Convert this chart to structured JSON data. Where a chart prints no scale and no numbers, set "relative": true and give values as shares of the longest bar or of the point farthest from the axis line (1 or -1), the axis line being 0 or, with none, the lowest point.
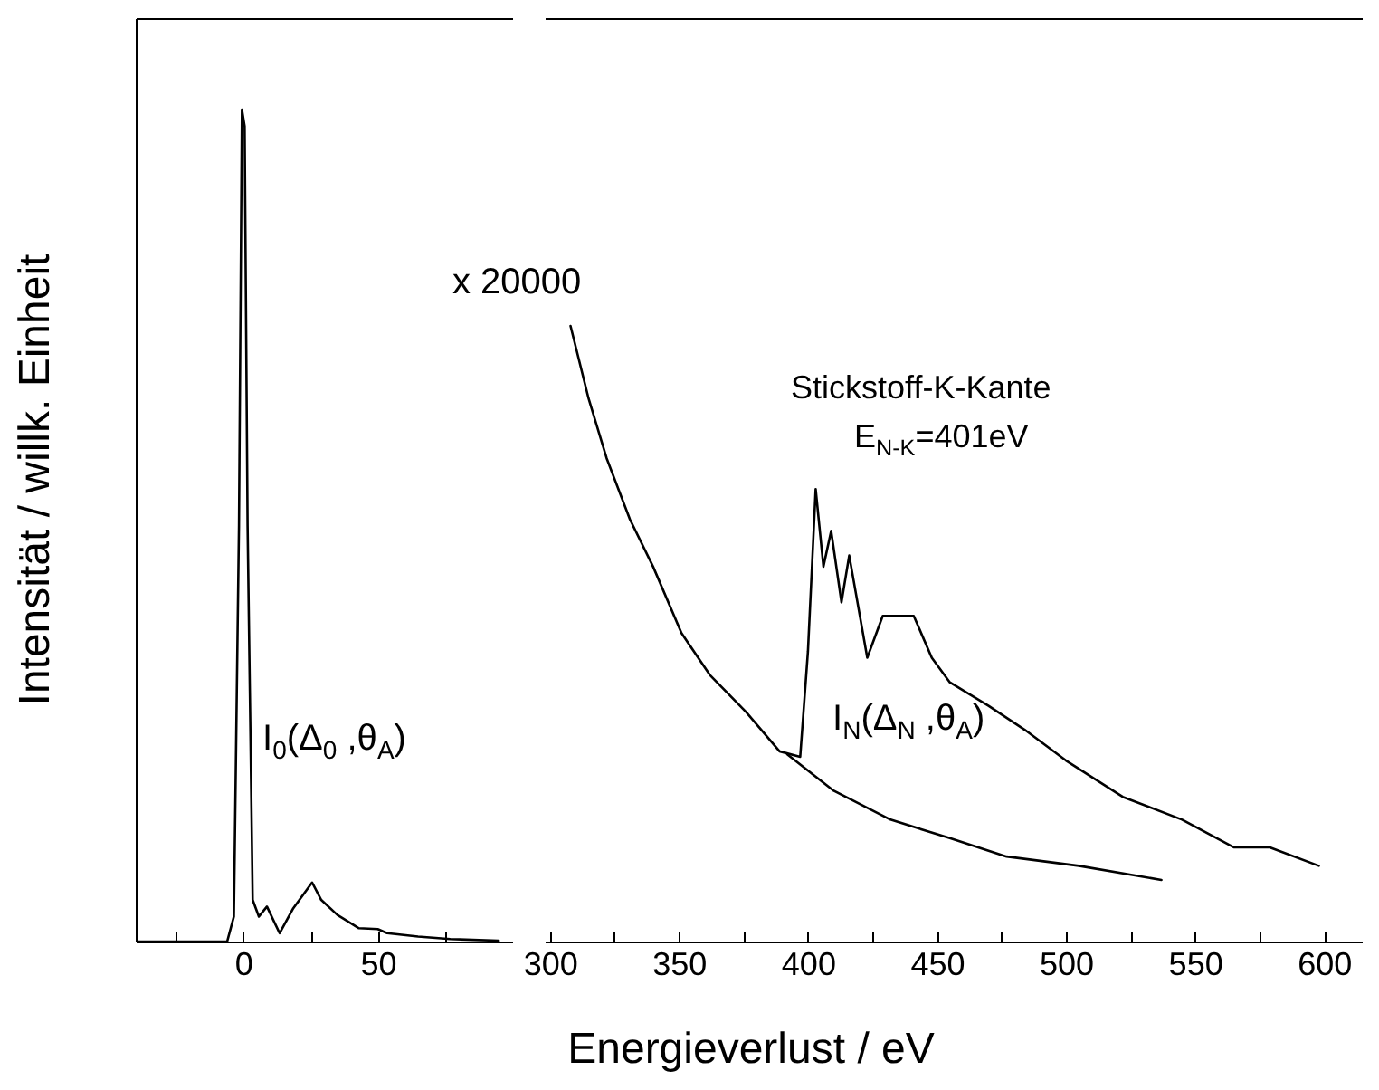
{
  "chart_data": [
    {
      "type": "line",
      "relative": true,
      "ylabel": "Intensität / willk. Einheit",
      "tick_labels": "x",
      "xlim": [
        -40,
        100
      ],
      "xticks": [
        {
          "value": -25,
          "label": null
        },
        0,
        {
          "value": 25,
          "label": null
        },
        50,
        {
          "value": 75,
          "label": null
        }
      ],
      "x": [
        -40,
        -6,
        -3.5,
        -1.6,
        -0.5,
        0.5,
        1.6,
        3.5,
        5.8,
        8.8,
        13.5,
        18.6,
        25.6,
        29,
        35,
        43,
        50,
        53.5,
        65,
        77,
        95
      ],
      "series": [
        {
          "color": "#000000",
          "values": [
            0,
            0,
            0.03,
            0.5,
            1.0,
            0.98,
            0.5,
            0.05,
            0.03,
            0.042,
            0.01,
            0.04,
            0.071,
            0.05,
            0.032,
            0.016,
            0.015,
            0.01,
            0.006,
            0.003,
            0.001
          ]
        }
      ],
      "annotations": [
        "I$_{0}$(Δ$_{0}$ ,θ$_{A}$)"
      ]
    },
    {
      "type": "line",
      "relative": true,
      "xlabel": "Energieverlust / eV",
      "tick_labels": "x",
      "xlim": [
        298,
        615
      ],
      "xticks": [
        300,
        {
          "value": 325,
          "label": null
        },
        350,
        {
          "value": 375,
          "label": null
        },
        400,
        {
          "value": 425,
          "label": null
        },
        450,
        {
          "value": 475,
          "label": null
        },
        500,
        {
          "value": 525,
          "label": null
        },
        550,
        {
          "value": 575,
          "label": null
        },
        600
      ],
      "series": [
        {
          "color": "#000000",
          "x": [
            308,
            315,
            322,
            331,
            340,
            351,
            362,
            376,
            389,
            397,
            400,
            403,
            406,
            409,
            413,
            416,
            423,
            429,
            441,
            448,
            455,
            470,
            484,
            500,
            522,
            545,
            565,
            579,
            598
          ],
          "values": [
            1,
            0.882,
            0.785,
            0.686,
            0.609,
            0.501,
            0.433,
            0.373,
            0.309,
            0.3,
            0.471,
            0.735,
            0.609,
            0.667,
            0.551,
            0.627,
            0.461,
            0.529,
            0.529,
            0.461,
            0.421,
            0.383,
            0.344,
            0.294,
            0.235,
            0.198,
            0.153,
            0.153,
            0.123
          ]
        },
        {
          "color": "#000000",
          "x": [
            392,
            410,
            432,
            455,
            477,
            505,
            537
          ],
          "values": [
            0.304,
            0.245,
            0.198,
            0.168,
            0.138,
            0.123,
            0.1
          ]
        }
      ],
      "annotations": [
        "x 20000",
        "Stickstoff-K-Kante",
        "E$_{N-K}$=401eV",
        "I$_{N}$(Δ$_{N}$ ,θ$_{A}$)"
      ]
    }
  ]
}
